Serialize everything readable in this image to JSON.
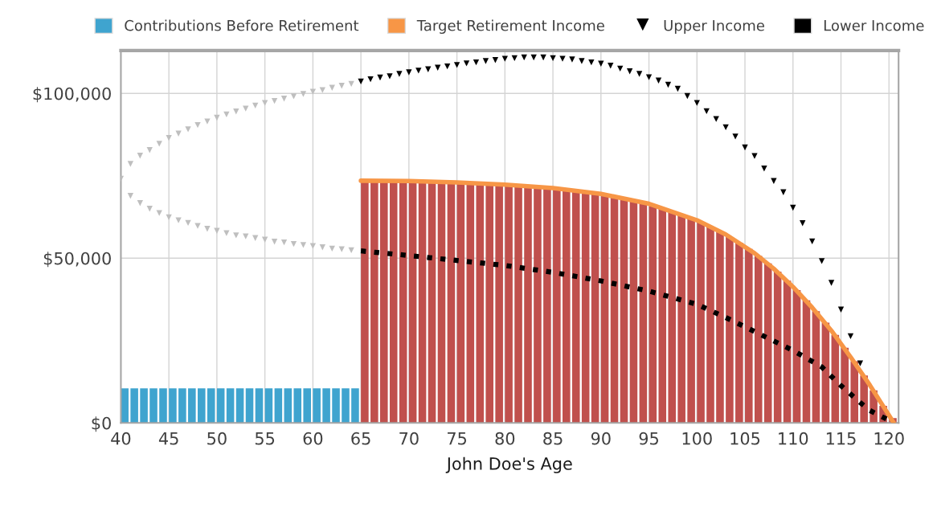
{
  "chart_data": {
    "type": "bar",
    "xlabel": "John Doe's Age",
    "xlim": [
      40,
      121
    ],
    "xticks": [
      40,
      45,
      50,
      55,
      60,
      65,
      70,
      75,
      80,
      85,
      90,
      95,
      100,
      105,
      110,
      115,
      120
    ],
    "ylim": [
      0,
      113000
    ],
    "yticks": [
      {
        "value": 0,
        "label": "$0"
      },
      {
        "value": 50000,
        "label": "$50,000"
      },
      {
        "value": 100000,
        "label": "$100,000"
      }
    ],
    "grid": true,
    "legend": "top",
    "series": [
      {
        "name": "Contributions Before Retirement",
        "color": "#3fa4cf",
        "x": [
          40,
          41,
          42,
          43,
          44,
          45,
          46,
          47,
          48,
          49,
          50,
          51,
          52,
          53,
          54,
          55,
          56,
          57,
          58,
          59,
          60,
          61,
          62,
          63,
          64
        ],
        "values": [
          10500,
          10500,
          10500,
          10500,
          10500,
          10500,
          10500,
          10500,
          10500,
          10500,
          10500,
          10500,
          10500,
          10500,
          10500,
          10500,
          10500,
          10500,
          10500,
          10500,
          10500,
          10500,
          10500,
          10500,
          10500
        ]
      },
      {
        "color": "#c0504d",
        "x": [
          65,
          66,
          67,
          68,
          69,
          70,
          71,
          72,
          73,
          74,
          75,
          76,
          77,
          78,
          79,
          80,
          81,
          82,
          83,
          84,
          85,
          86,
          87,
          88,
          89,
          90,
          91,
          92,
          93,
          94,
          95,
          96,
          97,
          98,
          99,
          100,
          101,
          102,
          103,
          104,
          105,
          106,
          107,
          108,
          109,
          110,
          111,
          112,
          113,
          114,
          115,
          116,
          117,
          118,
          119,
          120
        ],
        "values": [
          73000,
          73000,
          73000,
          73000,
          73000,
          73000,
          72900,
          72800,
          72700,
          72600,
          72500,
          72400,
          72300,
          72100,
          72000,
          71800,
          71600,
          71400,
          71200,
          71000,
          70700,
          70400,
          70100,
          69700,
          69300,
          68900,
          68400,
          67800,
          67200,
          66500,
          65800,
          65000,
          64100,
          63100,
          62000,
          60800,
          59500,
          58000,
          56400,
          54700,
          52800,
          50700,
          48400,
          45900,
          43200,
          40300,
          37200,
          33900,
          30400,
          26700,
          22800,
          18700,
          14400,
          9900,
          5200,
          1500
        ]
      },
      {
        "name": "Target Retirement Income",
        "type": "line",
        "color": "#f79646",
        "line_style": "solid",
        "x": [
          65,
          70,
          75,
          80,
          85,
          90,
          95,
          100,
          103,
          106,
          108,
          110,
          112,
          114,
          116,
          118,
          120.5
        ],
        "values": [
          73500,
          73400,
          73000,
          72300,
          71300,
          69500,
          66500,
          61500,
          57200,
          51500,
          46800,
          41300,
          35000,
          28000,
          20000,
          11500,
          0
        ]
      },
      {
        "type": "scatter",
        "color": "#bfbfbf",
        "marker": "triangle",
        "x": [
          40,
          41,
          42,
          43,
          44,
          45,
          46,
          47,
          48,
          49,
          50,
          51,
          52,
          53,
          54,
          55,
          56,
          57,
          58,
          59,
          60,
          61,
          62,
          63,
          64
        ],
        "values": [
          74100,
          78600,
          81100,
          82800,
          84700,
          86500,
          87800,
          89100,
          90400,
          91500,
          92600,
          93600,
          94500,
          95400,
          96300,
          97100,
          97700,
          98400,
          99100,
          99800,
          100500,
          101000,
          101700,
          102300,
          102900
        ]
      },
      {
        "type": "scatter",
        "color": "#bfbfbf",
        "marker": "triangle",
        "x": [
          41,
          42,
          43,
          44,
          45,
          46,
          47,
          48,
          49,
          50,
          51,
          52,
          53,
          54,
          55,
          56,
          57,
          58,
          59,
          60,
          61,
          62,
          63,
          64
        ],
        "values": [
          68900,
          66700,
          65000,
          63700,
          62400,
          61500,
          60700,
          59800,
          58900,
          58300,
          57600,
          56900,
          56600,
          56100,
          55600,
          55000,
          54800,
          54300,
          54000,
          53700,
          53300,
          52900,
          52700,
          52400
        ]
      },
      {
        "name": "Upper Income",
        "type": "scatter",
        "color": "#000000",
        "marker": "triangle",
        "x": [
          65,
          66,
          67,
          68,
          69,
          70,
          71,
          72,
          73,
          74,
          75,
          76,
          77,
          78,
          79,
          80,
          81,
          82,
          83,
          84,
          85,
          86,
          87,
          88,
          89,
          90,
          91,
          92,
          93,
          94,
          95,
          96,
          97,
          98,
          99,
          100,
          101,
          102,
          103,
          104,
          105,
          106,
          107,
          108,
          109,
          110,
          111,
          112,
          113,
          114,
          115,
          116,
          117
        ],
        "values": [
          103600,
          104300,
          104800,
          105200,
          105900,
          106400,
          106900,
          107300,
          107800,
          108200,
          108600,
          109100,
          109400,
          109800,
          110100,
          110500,
          110700,
          110900,
          110900,
          110900,
          110700,
          110500,
          110300,
          109800,
          109400,
          109000,
          108400,
          107500,
          106700,
          105900,
          104900,
          103900,
          102600,
          101400,
          99200,
          97100,
          94600,
          92200,
          89700,
          86900,
          83600,
          81000,
          77200,
          73400,
          70000,
          65300,
          60600,
          55100,
          49100,
          42500,
          34400,
          26300,
          18100
        ]
      },
      {
        "name": "Lower Income",
        "type": "line",
        "color": "#000000",
        "line_style": "dotted",
        "x": [
          65,
          70,
          75,
          80,
          85,
          90,
          95,
          100,
          103,
          107,
          110,
          113,
          115,
          117,
          118,
          120
        ],
        "values": [
          52200,
          50800,
          49300,
          47800,
          45700,
          43100,
          40000,
          36000,
          32000,
          26300,
          22000,
          17000,
          11300,
          6200,
          3800,
          800
        ]
      }
    ]
  }
}
